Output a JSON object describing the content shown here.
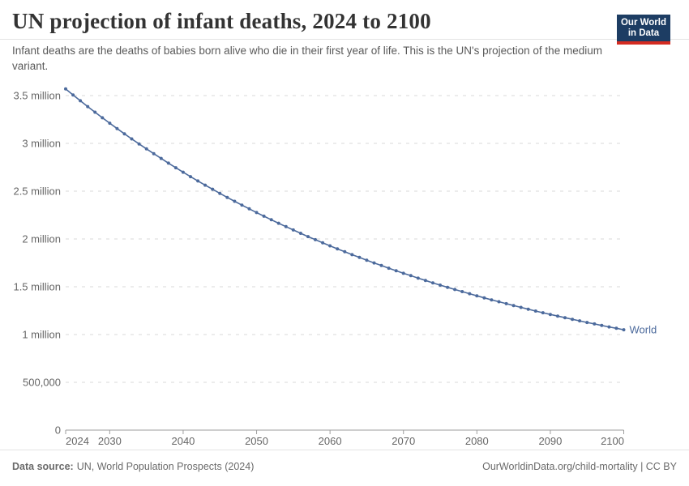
{
  "header": {
    "title": "UN projection of infant deaths, 2024 to 2100",
    "subtitle": "Infant deaths are the deaths of babies born alive who die in their first year of life. This is the UN's projection of the medium variant.",
    "logo": {
      "line1": "Our World",
      "line2": "in Data"
    }
  },
  "footer": {
    "source_label": "Data source:",
    "source_text": "UN, World Population Prospects (2024)",
    "right_text": "OurWorldinData.org/child-mortality | CC BY"
  },
  "colors": {
    "series_blue": "#4c6a9c",
    "grid": "#dadada",
    "axis": "#9e9e9e",
    "tick_label": "#666666",
    "logo_bg": "#1d3d63",
    "logo_accent": "#d42b21"
  },
  "chart_data": {
    "type": "line",
    "title": "UN projection of infant deaths, 2024 to 2100",
    "xlabel": "",
    "ylabel": "",
    "xlim": [
      2024,
      2100
    ],
    "ylim": [
      0,
      3570000
    ],
    "grid": true,
    "legend_position": "end-of-line-label",
    "x_ticks": [
      2024,
      2030,
      2040,
      2050,
      2060,
      2070,
      2080,
      2090,
      2100
    ],
    "y_ticks": [
      {
        "value": 0,
        "label": "0"
      },
      {
        "value": 500000,
        "label": "500,000"
      },
      {
        "value": 1000000,
        "label": "1 million"
      },
      {
        "value": 1500000,
        "label": "1.5 million"
      },
      {
        "value": 2000000,
        "label": "2 million"
      },
      {
        "value": 2500000,
        "label": "2.5 million"
      },
      {
        "value": 3000000,
        "label": "3 million"
      },
      {
        "value": 3500000,
        "label": "3.5 million"
      }
    ],
    "series": [
      {
        "name": "World",
        "color": "#4c6a9c",
        "start_year": 2024,
        "end_year": 2100,
        "values": [
          3570000,
          3507000,
          3446000,
          3385000,
          3326000,
          3268000,
          3211000,
          3155000,
          3100000,
          3047000,
          2994000,
          2942000,
          2892000,
          2842000,
          2793000,
          2745000,
          2698000,
          2652000,
          2607000,
          2563000,
          2520000,
          2477000,
          2435000,
          2394000,
          2354000,
          2315000,
          2276000,
          2238000,
          2201000,
          2164000,
          2129000,
          2094000,
          2059000,
          2025000,
          1992000,
          1960000,
          1928000,
          1897000,
          1866000,
          1836000,
          1807000,
          1778000,
          1749000,
          1722000,
          1694000,
          1668000,
          1641000,
          1616000,
          1590000,
          1566000,
          1541000,
          1517000,
          1494000,
          1471000,
          1449000,
          1427000,
          1405000,
          1384000,
          1363000,
          1343000,
          1323000,
          1303000,
          1284000,
          1265000,
          1246000,
          1228000,
          1210000,
          1193000,
          1176000,
          1159000,
          1143000,
          1126000,
          1111000,
          1095000,
          1080000,
          1065000,
          1050000
        ]
      }
    ]
  }
}
